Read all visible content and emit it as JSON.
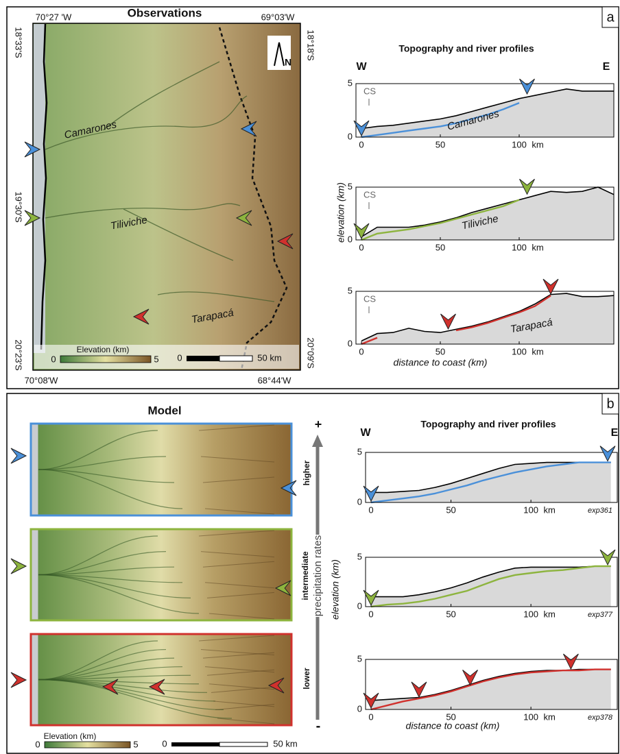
{
  "panel_a": {
    "label": "a",
    "map": {
      "title": "Observations",
      "coords_top": [
        "70°27 'W",
        "69°03'W"
      ],
      "coords_bottom": [
        "70°08'W",
        "68°44'W"
      ],
      "coords_left": [
        "18°33'S",
        "19°30'S",
        "20°23'S"
      ],
      "coords_right": [
        "18°18'S",
        "20°09'S"
      ],
      "north": "N",
      "rivers": [
        "Camarones",
        "Tiliviche",
        "Tarapacá"
      ],
      "colorbar": {
        "label": "Elevation (km)",
        "ticks": [
          0,
          5
        ]
      },
      "scale": {
        "ticks": [
          0,
          {
            "value": 50,
            "label": "50 km"
          }
        ]
      }
    },
    "profiles": {
      "title": "Topography and river profiles",
      "west": "W",
      "east": "E",
      "ylabel": "elevation (km)",
      "xlabel": "distance to coast (km)",
      "x_unit": "km",
      "plots": [
        {
          "annotation": "CS",
          "river_name": "Camarones",
          "river_color": "#4a90d9",
          "xlim": [
            0,
            160
          ],
          "ylim": [
            0,
            5
          ],
          "xticks": [
            0,
            50,
            100
          ],
          "yticks": [
            0,
            5
          ],
          "x": [
            0,
            10,
            20,
            30,
            40,
            50,
            60,
            70,
            80,
            90,
            100,
            110,
            120,
            130,
            140,
            150,
            160
          ],
          "topography": [
            0.8,
            1.0,
            1.1,
            1.3,
            1.5,
            1.7,
            2.0,
            2.4,
            2.8,
            3.2,
            3.6,
            3.9,
            4.2,
            4.5,
            4.3,
            4.3,
            4.3
          ],
          "river": [
            0,
            0.2,
            0.4,
            0.6,
            0.8,
            1.0,
            1.3,
            1.7,
            2.1,
            2.6,
            3.2,
            null,
            null,
            null,
            null,
            null,
            null
          ]
        },
        {
          "annotation": "CS",
          "river_name": "Tiliviche",
          "river_color": "#8db43e",
          "xlim": [
            0,
            160
          ],
          "ylim": [
            0,
            5
          ],
          "xticks": [
            0,
            50,
            100
          ],
          "yticks": [
            0,
            5
          ],
          "x": [
            0,
            10,
            20,
            30,
            40,
            50,
            60,
            70,
            80,
            90,
            100,
            110,
            120,
            130,
            140,
            150,
            160
          ],
          "topography": [
            0.3,
            1.2,
            1.2,
            1.2,
            1.4,
            1.7,
            2.1,
            2.6,
            3.0,
            3.4,
            3.8,
            4.2,
            4.6,
            4.5,
            4.6,
            5.0,
            4.3
          ],
          "river": [
            0,
            0.6,
            0.8,
            1.0,
            1.3,
            1.6,
            2.0,
            2.4,
            2.8,
            3.2,
            3.8,
            null,
            null,
            null,
            null,
            null,
            null
          ]
        },
        {
          "annotation": "CS",
          "river_name": "Tarapacá",
          "river_color": "#d0312d",
          "xlim": [
            0,
            160
          ],
          "ylim": [
            0,
            5
          ],
          "xticks": [
            0,
            50,
            100
          ],
          "yticks": [
            0,
            5
          ],
          "x": [
            0,
            10,
            20,
            30,
            40,
            50,
            60,
            70,
            80,
            90,
            100,
            110,
            120,
            130,
            140,
            150,
            160
          ],
          "topography": [
            0.3,
            1.0,
            1.1,
            1.5,
            1.2,
            1.1,
            1.4,
            1.7,
            2.1,
            2.6,
            3.1,
            3.8,
            4.7,
            4.8,
            4.5,
            4.5,
            4.6
          ],
          "river": [
            0,
            0.6,
            null,
            null,
            null,
            null,
            1.3,
            1.6,
            2.0,
            2.5,
            3.0,
            3.6,
            4.6,
            null,
            null,
            null,
            null
          ]
        }
      ]
    }
  },
  "panel_b": {
    "label": "b",
    "map": {
      "title": "Model",
      "colorbar": {
        "label": "Elevation (km)",
        "ticks": [
          0,
          5
        ]
      },
      "scale": {
        "ticks": [
          0,
          {
            "value": 50,
            "label": "50 km"
          }
        ]
      },
      "precipitation": {
        "plus": "+",
        "minus": "-",
        "higher": "higher",
        "intermediate": "intermediate",
        "label": "precipitation rates",
        "lower": "lower"
      }
    },
    "profiles": {
      "title": "Topography and river profiles",
      "west": "W",
      "east": "E",
      "ylabel": "elevation (km)",
      "xlabel": "distance to coast (km)",
      "x_unit": "km",
      "plots": [
        {
          "experiment": "exp361",
          "river_color": "#4a90d9",
          "xlim": [
            0,
            154
          ],
          "ylim": [
            0,
            5
          ],
          "xticks": [
            0,
            50,
            100
          ],
          "yticks": [
            0,
            5
          ],
          "x": [
            0,
            10,
            20,
            30,
            40,
            50,
            60,
            70,
            80,
            90,
            100,
            110,
            120,
            130,
            140,
            150
          ],
          "topography": [
            1.0,
            1.0,
            1.1,
            1.2,
            1.5,
            1.9,
            2.4,
            2.9,
            3.4,
            3.8,
            3.9,
            4.0,
            4.0,
            4.0,
            4.0,
            4.0
          ],
          "river": [
            0,
            0.2,
            0.4,
            0.6,
            0.9,
            1.3,
            1.7,
            2.2,
            2.6,
            3.0,
            3.3,
            3.6,
            3.8,
            4.0,
            4.0,
            4.0
          ]
        },
        {
          "experiment": "exp377",
          "river_color": "#8db43e",
          "xlim": [
            0,
            154
          ],
          "ylim": [
            0,
            5
          ],
          "xticks": [
            0,
            50,
            100
          ],
          "yticks": [
            0,
            5
          ],
          "x": [
            0,
            10,
            20,
            30,
            40,
            50,
            60,
            70,
            80,
            90,
            100,
            110,
            120,
            130,
            140,
            150
          ],
          "topography": [
            1.0,
            1.0,
            1.0,
            1.2,
            1.5,
            1.9,
            2.4,
            3.0,
            3.5,
            3.9,
            4.0,
            4.0,
            4.0,
            4.0,
            4.1,
            4.1
          ],
          "river": [
            0,
            0.2,
            0.3,
            0.5,
            0.8,
            1.2,
            1.6,
            2.2,
            2.8,
            3.2,
            3.4,
            3.6,
            3.7,
            3.9,
            4.1,
            4.1
          ]
        },
        {
          "experiment": "exp378",
          "river_color": "#d0312d",
          "xlim": [
            0,
            154
          ],
          "ylim": [
            0,
            5
          ],
          "xticks": [
            0,
            50,
            100
          ],
          "yticks": [
            0,
            5
          ],
          "x": [
            0,
            10,
            20,
            30,
            40,
            50,
            60,
            70,
            80,
            90,
            100,
            110,
            120,
            130,
            140,
            150
          ],
          "topography": [
            0.9,
            1.0,
            1.1,
            1.2,
            1.5,
            1.9,
            2.4,
            2.9,
            3.3,
            3.6,
            3.8,
            3.9,
            3.9,
            4.0,
            4.0,
            4.0
          ],
          "river": [
            0,
            0.4,
            0.8,
            1.1,
            1.4,
            1.8,
            2.3,
            2.8,
            3.2,
            3.5,
            3.7,
            3.8,
            3.9,
            3.9,
            4.0,
            4.0
          ]
        }
      ]
    }
  }
}
